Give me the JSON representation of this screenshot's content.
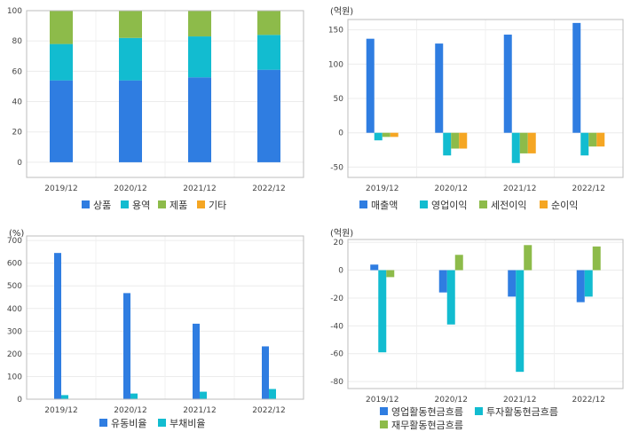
{
  "colors": {
    "blue": "#2f7de1",
    "cyan": "#12bcd0",
    "green": "#8dbb4a",
    "orange": "#f5a623"
  },
  "chart_data": [
    {
      "type": "bar",
      "stacked": true,
      "unit_label": "",
      "categories": [
        "2019/12",
        "2020/12",
        "2021/12",
        "2022/12"
      ],
      "ylim": [
        -10,
        100
      ],
      "yticks": [
        0,
        20,
        40,
        60,
        80,
        100
      ],
      "legend_position": "bottom",
      "series": [
        {
          "name": "상품",
          "color": "blue",
          "values": [
            54,
            54,
            56,
            61
          ]
        },
        {
          "name": "용역",
          "color": "cyan",
          "values": [
            24,
            28,
            27,
            23
          ]
        },
        {
          "name": "제품",
          "color": "green",
          "values": [
            22,
            18,
            17,
            16
          ]
        },
        {
          "name": "기타",
          "color": "orange",
          "values": [
            0,
            0,
            0,
            0
          ]
        }
      ]
    },
    {
      "type": "bar",
      "stacked": false,
      "unit_label": "(억원)",
      "categories": [
        "2019/12",
        "2020/12",
        "2021/12",
        "2022/12"
      ],
      "ylim": [
        -65,
        165
      ],
      "yticks": [
        -50,
        0,
        50,
        100,
        150
      ],
      "legend_position": "bottom",
      "series": [
        {
          "name": "매출액",
          "color": "blue",
          "values": [
            137,
            130,
            143,
            160
          ]
        },
        {
          "name": "영업이익",
          "color": "cyan",
          "values": [
            -11,
            -33,
            -44,
            -33
          ]
        },
        {
          "name": "세전이익",
          "color": "green",
          "values": [
            -6,
            -23,
            -30,
            -20
          ]
        },
        {
          "name": "순이익",
          "color": "orange",
          "values": [
            -6,
            -23,
            -30,
            -20
          ]
        }
      ]
    },
    {
      "type": "bar",
      "stacked": false,
      "unit_label": "(%)",
      "categories": [
        "2019/12",
        "2020/12",
        "2021/12",
        "2022/12"
      ],
      "ylim": [
        0,
        720
      ],
      "yticks": [
        0,
        100,
        200,
        300,
        400,
        500,
        600,
        700
      ],
      "legend_position": "bottom",
      "series": [
        {
          "name": "유동비율",
          "color": "blue",
          "values": [
            645,
            468,
            333,
            233
          ]
        },
        {
          "name": "부채비율",
          "color": "cyan",
          "values": [
            18,
            25,
            33,
            45
          ]
        }
      ]
    },
    {
      "type": "bar",
      "stacked": false,
      "unit_label": "(억원)",
      "categories": [
        "2019/12",
        "2020/12",
        "2021/12",
        "2022/12"
      ],
      "ylim": [
        -85,
        22
      ],
      "yticks": [
        -80,
        -60,
        -40,
        -20,
        0,
        20
      ],
      "legend_position": "bottom",
      "series": [
        {
          "name": "영업활동현금흐름",
          "color": "blue",
          "values": [
            4,
            -16,
            -19,
            -23
          ]
        },
        {
          "name": "투자활동현금흐름",
          "color": "cyan",
          "values": [
            -59,
            -39,
            -73,
            -19
          ]
        },
        {
          "name": "재무활동현금흐름",
          "color": "green",
          "values": [
            -5,
            11,
            18,
            17
          ]
        }
      ]
    }
  ]
}
